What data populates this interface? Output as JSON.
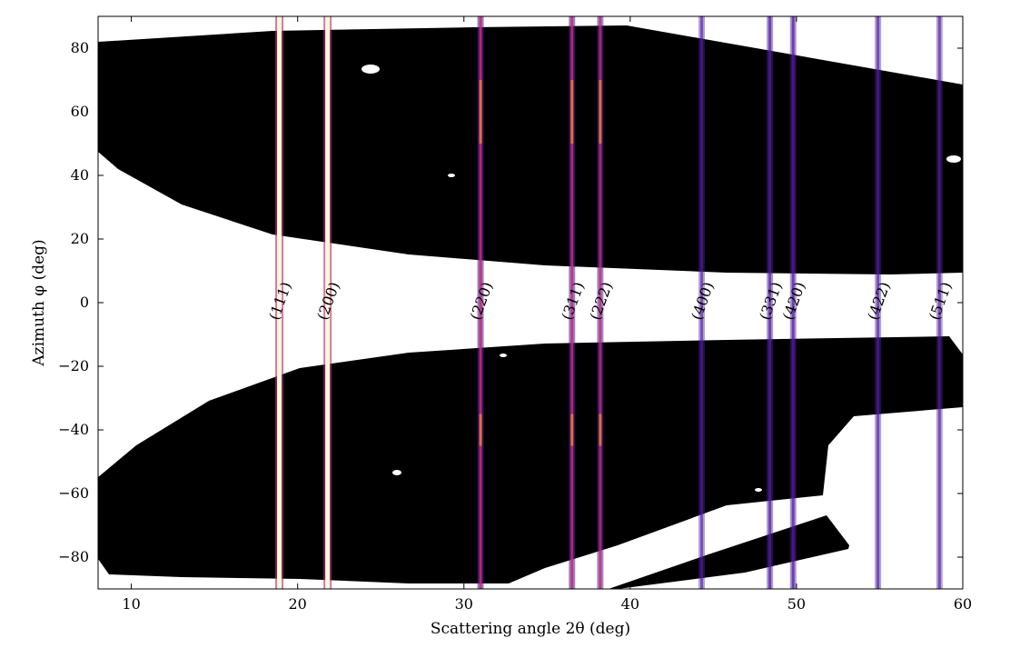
{
  "chart_data": {
    "type": "heatmap",
    "title": "",
    "xlabel": "Scattering angle 2θ (deg)",
    "ylabel": "Azimuth φ (deg)",
    "xlim": [
      8,
      60
    ],
    "ylim": [
      -90,
      90
    ],
    "xticks": [
      10,
      20,
      30,
      40,
      50,
      60
    ],
    "yticks": [
      80,
      60,
      40,
      20,
      0,
      -20,
      -40,
      -60,
      -80
    ],
    "grid": false,
    "colormap": "inferno",
    "background_intensity": "black",
    "masked_color": "#ffffff",
    "peaks": [
      {
        "label": "(111)",
        "two_theta": 18.9,
        "intensity": 1.0
      },
      {
        "label": "(200)",
        "two_theta": 21.8,
        "intensity": 1.0
      },
      {
        "label": "(220)",
        "two_theta": 31.0,
        "intensity": 0.75
      },
      {
        "label": "(311)",
        "two_theta": 36.5,
        "intensity": 0.7
      },
      {
        "label": "(222)",
        "two_theta": 38.2,
        "intensity": 0.6
      },
      {
        "label": "(400)",
        "two_theta": 44.3,
        "intensity": 0.25
      },
      {
        "label": "(331)",
        "two_theta": 48.4,
        "intensity": 0.4
      },
      {
        "label": "(420)",
        "two_theta": 49.8,
        "intensity": 0.4
      },
      {
        "label": "(422)",
        "two_theta": 54.9,
        "intensity": 0.3
      },
      {
        "label": "(511)",
        "two_theta": 58.6,
        "intensity": 0.25
      }
    ],
    "colors": {
      "hot": "#fff8e0",
      "warm": "#f08030",
      "mid": "#c03070",
      "cool": "#5020a0",
      "background": "#000000"
    }
  }
}
